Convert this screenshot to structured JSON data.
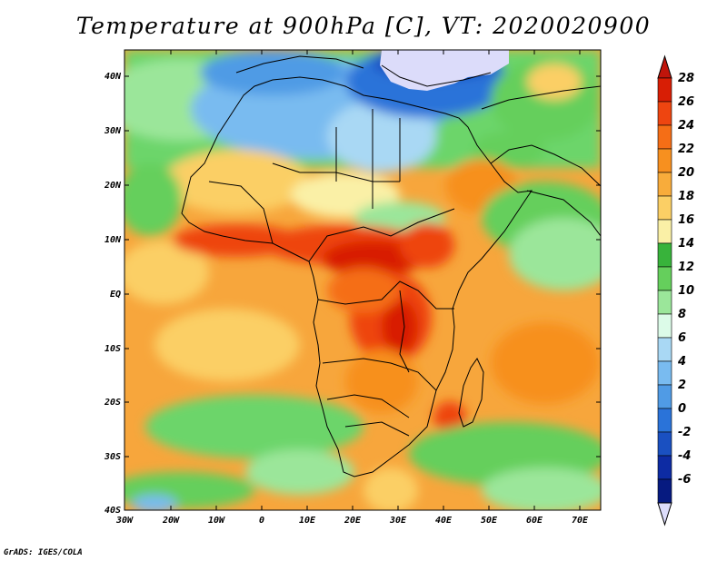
{
  "title": "Temperature at 900hPa [C], VT: 2020020900",
  "credit": "GrADS: IGES/COLA",
  "lat_labels": [
    "40N",
    "30N",
    "20N",
    "10N",
    "EQ",
    "10S",
    "20S",
    "30S",
    "40S"
  ],
  "lon_labels": [
    "30W",
    "20W",
    "10W",
    "0",
    "10E",
    "20E",
    "30E",
    "40E",
    "50E",
    "60E",
    "70E"
  ],
  "colorbar": {
    "labels": [
      "28",
      "26",
      "24",
      "22",
      "20",
      "18",
      "16",
      "14",
      "12",
      "10",
      "8",
      "6",
      "4",
      "2",
      "0",
      "-2",
      "-4",
      "-6"
    ],
    "colors": [
      "#d81e05",
      "#ee4510",
      "#f56e16",
      "#f7901f",
      "#f8ac3b",
      "#fbcf65",
      "#faf0a6",
      "#38b33b",
      "#65cf5c",
      "#9be69a",
      "#dcfbe8",
      "#a9d8f4",
      "#79bbf0",
      "#509be5",
      "#2a73d9",
      "#1a50c1",
      "#0d2ba3",
      "#061a80"
    ],
    "above_color": "#c0150b",
    "below_color": "#dcdcfa"
  },
  "plot_background": "#f5b14a"
}
